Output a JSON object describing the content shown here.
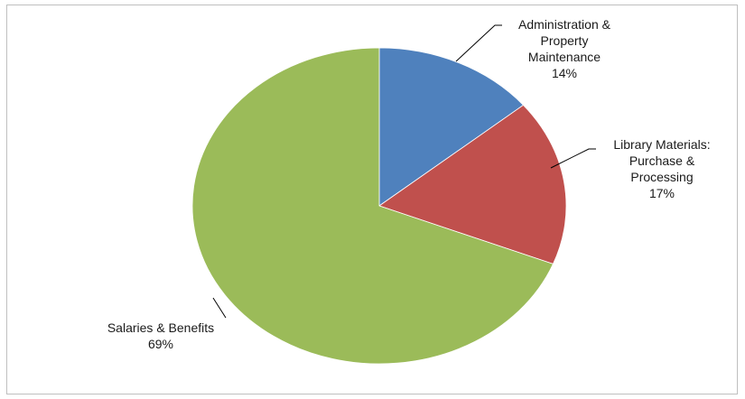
{
  "chart_data": {
    "type": "pie",
    "title": "",
    "legend": "none",
    "slices": [
      {
        "label_lines": [
          "Administration  &",
          "Property",
          "Maintenance"
        ],
        "value": 14,
        "percent_label": "14%",
        "color": "#4f81bd"
      },
      {
        "label_lines": [
          "Library Materials:",
          "Purchase &",
          "Processing"
        ],
        "value": 17,
        "percent_label": "17%",
        "color": "#c0504d"
      },
      {
        "label_lines": [
          "Salaries & Benefits"
        ],
        "value": 69,
        "percent_label": "69%",
        "color": "#9bbb59"
      }
    ]
  }
}
